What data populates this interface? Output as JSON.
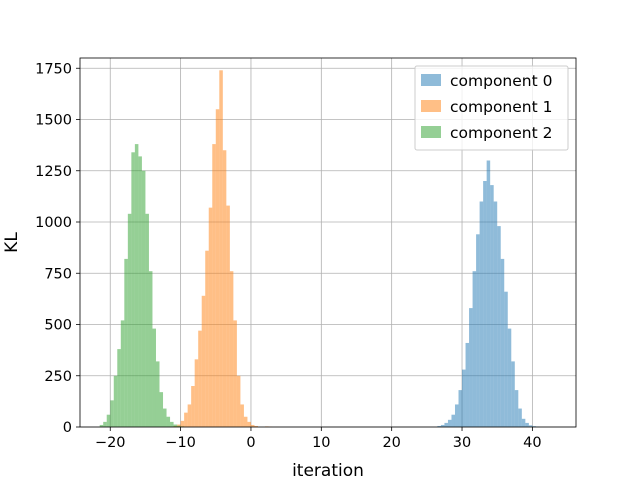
{
  "chart_data": {
    "type": "histogram",
    "title": "",
    "xlabel": "iteration",
    "ylabel": "KL",
    "xlim": [
      -24.3,
      46.2
    ],
    "ylim": [
      0,
      1800
    ],
    "xticks": [
      -20,
      -10,
      0,
      10,
      20,
      30,
      40
    ],
    "yticks": [
      0,
      250,
      500,
      750,
      1000,
      1250,
      1500,
      1750
    ],
    "grid": true,
    "legend_position": "top-right",
    "bin_width": 0.5,
    "series": [
      {
        "name": "component 0",
        "color": "#1f77b4",
        "alpha": 0.5,
        "bin_start": 26.5,
        "counts": [
          5,
          10,
          20,
          35,
          60,
          110,
          180,
          280,
          410,
          580,
          760,
          940,
          1100,
          1200,
          1300,
          1180,
          1100,
          980,
          820,
          660,
          480,
          320,
          180,
          90,
          40,
          20,
          8,
          4,
          2
        ]
      },
      {
        "name": "component 1",
        "color": "#ff7f0e",
        "alpha": 0.5,
        "bin_start": -11,
        "counts": [
          5,
          12,
          30,
          70,
          110,
          200,
          330,
          470,
          640,
          860,
          1070,
          1380,
          1550,
          1740,
          1350,
          1080,
          760,
          520,
          250,
          110,
          50,
          25,
          10,
          5,
          0,
          0,
          3,
          2,
          0,
          1
        ]
      },
      {
        "name": "component 2",
        "color": "#2ca02c",
        "alpha": 0.5,
        "bin_start": -21.5,
        "counts": [
          10,
          25,
          60,
          130,
          250,
          380,
          520,
          820,
          1040,
          1340,
          1380,
          1320,
          1250,
          1040,
          760,
          480,
          320,
          170,
          90,
          50,
          25,
          12,
          6,
          3
        ]
      }
    ]
  }
}
